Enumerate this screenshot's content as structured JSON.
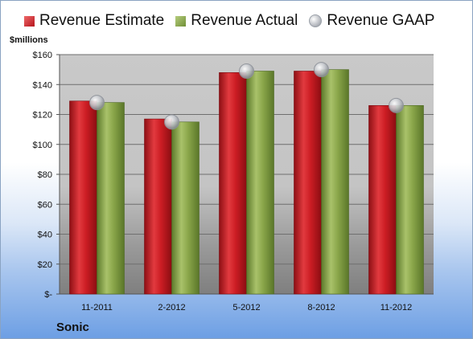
{
  "legend": {
    "estimate": "Revenue Estimate",
    "actual": "Revenue Actual",
    "gaap": "Revenue GAAP"
  },
  "unit_label": "$millions",
  "company": "Sonic",
  "colors": {
    "estimate": "#c8161e",
    "actual": "#8aa64a",
    "gaap": "#b9bcc2"
  },
  "chart_data": {
    "type": "bar",
    "categories": [
      "11-2011",
      "2-2012",
      "5-2012",
      "8-2012",
      "11-2012"
    ],
    "series": [
      {
        "name": "Revenue Estimate",
        "values": [
          129,
          117,
          148,
          149,
          126
        ]
      },
      {
        "name": "Revenue Actual",
        "values": [
          128,
          115,
          149,
          150,
          126
        ]
      },
      {
        "name": "Revenue GAAP",
        "values": [
          128,
          115,
          149,
          150,
          126
        ]
      }
    ],
    "ylabel": "$millions",
    "ylim": [
      0,
      160
    ],
    "yticks": [
      0,
      20,
      40,
      60,
      80,
      100,
      120,
      140,
      160
    ],
    "ytick_labels": [
      "$-",
      "$20",
      "$40",
      "$60",
      "$80",
      "$100",
      "$120",
      "$140",
      "$160"
    ],
    "grid": true,
    "legend_position": "top"
  }
}
